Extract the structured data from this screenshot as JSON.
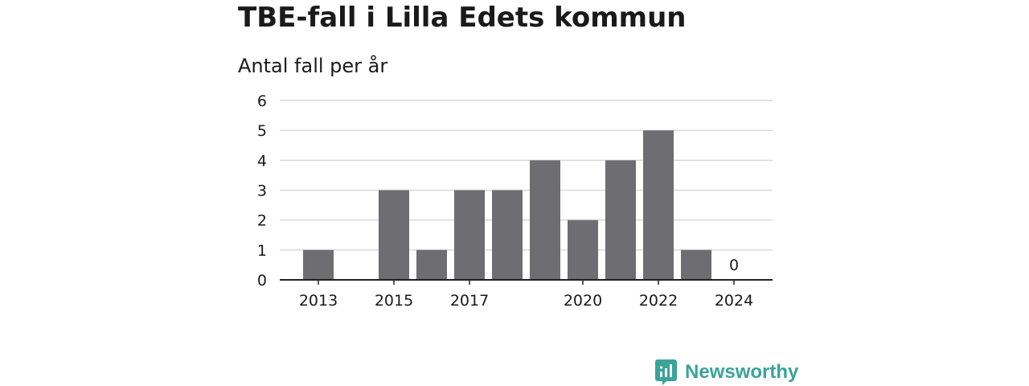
{
  "title": "TBE-fall i Lilla Edets kommun",
  "subtitle": "Antal fall per år",
  "brand": {
    "name": "Newsworthy",
    "icon": "newsworthy-logo-icon",
    "color": "#3aa39a"
  },
  "chart_data": {
    "type": "bar",
    "title": "TBE-fall i Lilla Edets kommun",
    "subtitle": "Antal fall per år",
    "categories": [
      "2013",
      "2014",
      "2015",
      "2016",
      "2017",
      "2018",
      "2019",
      "2020",
      "2021",
      "2022",
      "2023",
      "2024"
    ],
    "tick_labels": [
      "2013",
      "2015",
      "2017",
      "2020",
      "2022",
      "2024"
    ],
    "values": [
      1,
      0,
      3,
      1,
      3,
      3,
      4,
      2,
      4,
      5,
      1,
      0
    ],
    "data_labels": [
      {
        "category": "2024",
        "text": "0"
      }
    ],
    "yticks": [
      "0",
      "1",
      "2",
      "3",
      "4",
      "5",
      "6"
    ],
    "ylim": [
      0,
      6
    ],
    "bar_color": "#6e6d72",
    "grid": true
  }
}
